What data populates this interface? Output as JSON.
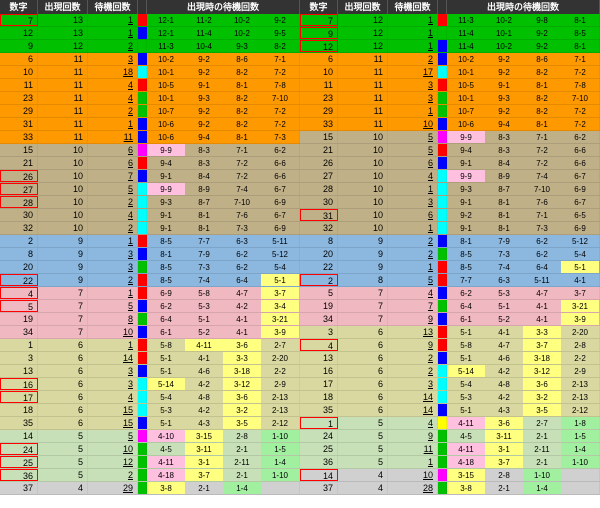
{
  "headers": {
    "num": "数字",
    "appear": "出現回数",
    "wait": "待機回数",
    "waitAtAppear": "出現時の待機回数"
  },
  "colors": {
    "green": "#00c000",
    "orange": "#ff9900",
    "tan": "#c0b088",
    "blue": "#8cb8e0",
    "pink": "#f0b8c0",
    "olive": "#d8d8a0",
    "ltgreen": "#c8e0b8",
    "gray": "#d0d0d0",
    "red": "#ff0000",
    "magenta": "#ff00ff",
    "dkblue": "#0000ff",
    "yellow": "#ffff00",
    "cyan": "#00ffff",
    "hl_yellow": "#ffff80",
    "hl_green": "#a0f0a0",
    "hl_pink": "#ffc0e0",
    "hl_blue": "#c0e0ff"
  },
  "left": [
    {
      "n": 7,
      "a": 13,
      "w": 1,
      "bg": "green",
      "bar": "red",
      "rb": 1,
      "wt": [
        "12-1",
        "11-2",
        "10-2",
        "9-2"
      ],
      "wh": [
        0,
        0,
        0,
        0
      ]
    },
    {
      "n": 12,
      "a": 13,
      "w": 1,
      "bg": "green",
      "bar": "dkblue",
      "wt": [
        "12-1",
        "11-4",
        "10-2",
        "9-5"
      ],
      "wh": [
        0,
        0,
        0,
        0
      ]
    },
    {
      "n": 9,
      "a": 12,
      "w": 2,
      "bg": "green",
      "bar": "green",
      "wt": [
        "11-3",
        "10-4",
        "9-3",
        "8-2"
      ],
      "wh": [
        1,
        0,
        0,
        0
      ]
    },
    {
      "n": 6,
      "a": 11,
      "w": 3,
      "bg": "orange",
      "bar": "dkblue",
      "wt": [
        "10-2",
        "9-2",
        "8-6",
        "7-1"
      ],
      "wh": [
        0,
        0,
        0,
        0
      ]
    },
    {
      "n": 10,
      "a": 11,
      "w": 18,
      "bg": "orange",
      "bar": "cyan",
      "wt": [
        "10-1",
        "9-2",
        "8-2",
        "7-2"
      ],
      "wh": [
        0,
        0,
        0,
        0
      ]
    },
    {
      "n": 11,
      "a": 11,
      "w": 4,
      "bg": "orange",
      "bar": "red",
      "wt": [
        "10-5",
        "9-1",
        "8-1",
        "7-8"
      ],
      "wh": [
        0,
        0,
        0,
        0
      ]
    },
    {
      "n": 23,
      "a": 11,
      "w": 4,
      "bg": "orange",
      "bar": "green",
      "wt": [
        "10-1",
        "9-3",
        "8-2",
        "7-10"
      ],
      "wh": [
        0,
        0,
        0,
        0
      ]
    },
    {
      "n": 29,
      "a": 11,
      "w": 2,
      "bg": "orange",
      "bar": "green",
      "wt": [
        "10-7",
        "9-2",
        "8-2",
        "7-2"
      ],
      "wh": [
        0,
        0,
        0,
        0
      ]
    },
    {
      "n": 31,
      "a": 11,
      "w": 1,
      "bg": "orange",
      "bar": "dkblue",
      "wt": [
        "10-6",
        "9-2",
        "8-2",
        "7-2"
      ],
      "wh": [
        0,
        0,
        0,
        0
      ]
    },
    {
      "n": 33,
      "a": 11,
      "w": 11,
      "bg": "orange",
      "bar": "dkblue",
      "wt": [
        "10-6",
        "9-4",
        "8-1",
        "7-3"
      ],
      "wh": [
        0,
        0,
        0,
        0,
        "hl_blue"
      ]
    },
    {
      "n": 15,
      "a": 10,
      "w": 6,
      "bg": "tan",
      "bar": "magenta",
      "wt": [
        "9-9",
        "8-3",
        "7-1",
        "6-2"
      ],
      "wh": [
        "hl_pink",
        0,
        0,
        0
      ]
    },
    {
      "n": 21,
      "a": 10,
      "w": 6,
      "bg": "tan",
      "bar": "red",
      "wt": [
        "9-4",
        "8-3",
        "7-2",
        "6-6"
      ],
      "wh": [
        0,
        0,
        0,
        0
      ]
    },
    {
      "n": 26,
      "a": 10,
      "w": 7,
      "bg": "tan",
      "bar": "dkblue",
      "rb": 1,
      "wt": [
        "9-1",
        "8-4",
        "7-2",
        "6-6"
      ],
      "wh": [
        0,
        0,
        0,
        0
      ]
    },
    {
      "n": 27,
      "a": 10,
      "w": 5,
      "bg": "tan",
      "bar": "cyan",
      "rb": 1,
      "wt": [
        "9-9",
        "8-9",
        "7-4",
        "6-7"
      ],
      "wh": [
        "hl_pink",
        0,
        0,
        0
      ]
    },
    {
      "n": 28,
      "a": 10,
      "w": 2,
      "bg": "tan",
      "bar": "cyan",
      "rb": 1,
      "wt": [
        "9-3",
        "8-7",
        "7-10",
        "6-9"
      ],
      "wh": [
        0,
        0,
        0,
        0
      ]
    },
    {
      "n": 30,
      "a": 10,
      "w": 4,
      "bg": "tan",
      "bar": "cyan",
      "wt": [
        "9-1",
        "8-1",
        "7-6",
        "6-7"
      ],
      "wh": [
        0,
        0,
        0,
        0
      ]
    },
    {
      "n": 32,
      "a": 10,
      "w": 2,
      "bg": "tan",
      "bar": "cyan",
      "wt": [
        "9-1",
        "8-1",
        "7-3",
        "6-9"
      ],
      "wh": [
        0,
        0,
        0,
        0
      ]
    },
    {
      "n": 2,
      "a": 9,
      "w": 1,
      "bg": "blue",
      "bar": "red",
      "wt": [
        "8-5",
        "7-7",
        "6-3",
        "5-11"
      ],
      "wh": [
        0,
        0,
        0,
        0
      ]
    },
    {
      "n": 8,
      "a": 9,
      "w": 3,
      "bg": "blue",
      "bar": "dkblue",
      "wt": [
        "8-1",
        "7-9",
        "6-2",
        "5-12"
      ],
      "wh": [
        0,
        0,
        0,
        0
      ]
    },
    {
      "n": 20,
      "a": 9,
      "w": 3,
      "bg": "blue",
      "bar": "green",
      "wt": [
        "8-5",
        "7-3",
        "6-2",
        "5-4"
      ],
      "wh": [
        0,
        0,
        0,
        0
      ]
    },
    {
      "n": 22,
      "a": 9,
      "w": 2,
      "bg": "blue",
      "bar": "red",
      "rb": 1,
      "wt": [
        "8-5",
        "7-4",
        "6-4",
        "5-1"
      ],
      "wh": [
        0,
        0,
        0,
        "hl_yellow"
      ]
    },
    {
      "n": 4,
      "a": 7,
      "w": 1,
      "bg": "pink",
      "bar": "red",
      "rb": 1,
      "wt": [
        "6-9",
        "5-8",
        "4-7",
        "3-7"
      ],
      "wh": [
        0,
        0,
        0,
        "hl_yellow"
      ]
    },
    {
      "n": 5,
      "a": 7,
      "w": 5,
      "bg": "pink",
      "bar": "dkblue",
      "rb": 1,
      "wt": [
        "6-2",
        "5-3",
        "4-2",
        "3-4"
      ],
      "wh": [
        0,
        0,
        0,
        "hl_yellow"
      ]
    },
    {
      "n": 19,
      "a": 7,
      "w": 8,
      "bg": "pink",
      "bar": "green",
      "wt": [
        "6-4",
        "5-1",
        "4-1",
        "3-21"
      ],
      "wh": [
        0,
        0,
        0,
        "hl_yellow"
      ]
    },
    {
      "n": 34,
      "a": 7,
      "w": 10,
      "bg": "pink",
      "bar": "dkblue",
      "wt": [
        "6-1",
        "5-2",
        "4-1",
        "3-9"
      ],
      "wh": [
        0,
        0,
        0,
        "hl_yellow"
      ]
    },
    {
      "n": 1,
      "a": 6,
      "w": 1,
      "bg": "olive",
      "bar": "red",
      "wt": [
        "5-8",
        "4-11",
        "3-6",
        "2-7"
      ],
      "wh": [
        0,
        "hl_yellow",
        "hl_yellow",
        0
      ]
    },
    {
      "n": 3,
      "a": 6,
      "w": 14,
      "bg": "olive",
      "bar": "red",
      "wt": [
        "5-1",
        "4-1",
        "3-3",
        "2-20"
      ],
      "wh": [
        0,
        0,
        "hl_yellow",
        0
      ]
    },
    {
      "n": 13,
      "a": 6,
      "w": 3,
      "bg": "olive",
      "bar": "dkblue",
      "wt": [
        "5-1",
        "4-6",
        "3-18",
        "2-2"
      ],
      "wh": [
        0,
        0,
        "hl_yellow",
        0
      ]
    },
    {
      "n": 16,
      "a": 6,
      "w": 3,
      "bg": "olive",
      "bar": "cyan",
      "rb": 1,
      "wt": [
        "5-14",
        "4-2",
        "3-12",
        "2-9"
      ],
      "wh": [
        "hl_yellow",
        0,
        "hl_yellow",
        0
      ]
    },
    {
      "n": 17,
      "a": 6,
      "w": 4,
      "bg": "olive",
      "bar": "cyan",
      "rb": 1,
      "wt": [
        "5-4",
        "4-8",
        "3-6",
        "2-13"
      ],
      "wh": [
        0,
        0,
        "hl_yellow",
        0
      ]
    },
    {
      "n": 18,
      "a": 6,
      "w": 15,
      "bg": "olive",
      "bar": "cyan",
      "wt": [
        "5-3",
        "4-2",
        "3-2",
        "2-13"
      ],
      "wh": [
        0,
        0,
        "hl_yellow",
        0
      ]
    },
    {
      "n": 35,
      "a": 6,
      "w": 15,
      "bg": "olive",
      "bar": "dkblue",
      "wt": [
        "5-1",
        "4-3",
        "3-5",
        "2-12"
      ],
      "wh": [
        0,
        0,
        "hl_yellow",
        0
      ]
    },
    {
      "n": 14,
      "a": 5,
      "w": 5,
      "bg": "ltgreen",
      "bar": "magenta",
      "wt": [
        "4-10",
        "3-15",
        "2-8",
        "1-10"
      ],
      "wh": [
        "hl_pink",
        "hl_yellow",
        0,
        "hl_green"
      ]
    },
    {
      "n": 24,
      "a": 5,
      "w": 10,
      "bg": "ltgreen",
      "bar": "green",
      "rb": 1,
      "wt": [
        "4-5",
        "3-11",
        "2-1",
        "1-5"
      ],
      "wh": [
        0,
        "hl_yellow",
        0,
        "hl_green"
      ]
    },
    {
      "n": 25,
      "a": 5,
      "w": 12,
      "bg": "ltgreen",
      "bar": "green",
      "rb": 1,
      "wt": [
        "4-11",
        "3-1",
        "2-11",
        "1-4"
      ],
      "wh": [
        "hl_pink",
        "hl_yellow",
        0,
        "hl_green"
      ]
    },
    {
      "n": 36,
      "a": 5,
      "w": 2,
      "bg": "ltgreen",
      "bar": "green",
      "rb": 1,
      "wt": [
        "4-18",
        "3-7",
        "2-1",
        "1-10"
      ],
      "wh": [
        "hl_pink",
        "hl_yellow",
        0,
        "hl_green"
      ]
    },
    {
      "n": 37,
      "a": 4,
      "w": 29,
      "bg": "gray",
      "bar": "green",
      "wt": [
        "3-8",
        "2-1",
        "1-4",
        ""
      ],
      "wh": [
        "hl_yellow",
        0,
        "hl_green",
        0
      ]
    }
  ],
  "right": [
    {
      "n": 7,
      "a": 12,
      "w": 1,
      "bg": "green",
      "bar": "red",
      "rb": 1,
      "wt": [
        "11-3",
        "10-2",
        "9-8",
        "8-1"
      ],
      "wh": [
        0,
        0,
        0,
        0
      ]
    },
    {
      "n": 9,
      "a": 12,
      "w": 1,
      "bg": "green",
      "bar": "green",
      "rb": 1,
      "wt": [
        "11-4",
        "10-1",
        "9-2",
        "8-5"
      ],
      "wh": [
        0,
        0,
        0,
        0
      ]
    },
    {
      "n": 12,
      "a": 12,
      "w": 1,
      "bg": "green",
      "bar": "dkblue",
      "rb": 1,
      "wt": [
        "11-4",
        "10-2",
        "9-2",
        "8-1"
      ],
      "wh": [
        0,
        0,
        0,
        0
      ]
    },
    {
      "n": 6,
      "a": 11,
      "w": 2,
      "bg": "orange",
      "bar": "dkblue",
      "wt": [
        "10-2",
        "9-2",
        "8-6",
        "7-1"
      ],
      "wh": [
        0,
        0,
        0,
        0
      ]
    },
    {
      "n": 10,
      "a": 11,
      "w": 17,
      "bg": "orange",
      "bar": "cyan",
      "wt": [
        "10-1",
        "9-2",
        "8-2",
        "7-2"
      ],
      "wh": [
        0,
        0,
        0,
        0
      ]
    },
    {
      "n": 11,
      "a": 11,
      "w": 3,
      "bg": "orange",
      "bar": "red",
      "wt": [
        "10-5",
        "9-1",
        "8-1",
        "7-8"
      ],
      "wh": [
        0,
        0,
        0,
        0
      ]
    },
    {
      "n": 23,
      "a": 11,
      "w": 3,
      "bg": "orange",
      "bar": "green",
      "wt": [
        "10-1",
        "9-3",
        "8-2",
        "7-10"
      ],
      "wh": [
        0,
        0,
        0,
        0
      ]
    },
    {
      "n": 29,
      "a": 11,
      "w": 1,
      "bg": "orange",
      "bar": "green",
      "wt": [
        "10-7",
        "9-2",
        "8-2",
        "7-2"
      ],
      "wh": [
        0,
        0,
        0,
        0
      ]
    },
    {
      "n": 33,
      "a": 11,
      "w": 10,
      "bg": "orange",
      "bar": "dkblue",
      "wt": [
        "10-6",
        "9-4",
        "8-1",
        "7-2"
      ],
      "wh": [
        0,
        0,
        0,
        0
      ]
    },
    {
      "n": 15,
      "a": 10,
      "w": 5,
      "bg": "tan",
      "bar": "magenta",
      "wt": [
        "9-9",
        "8-3",
        "7-1",
        "6-2"
      ],
      "wh": [
        "hl_pink",
        0,
        0,
        0
      ]
    },
    {
      "n": 21,
      "a": 10,
      "w": 5,
      "bg": "tan",
      "bar": "red",
      "wt": [
        "9-4",
        "8-3",
        "7-2",
        "6-6"
      ],
      "wh": [
        0,
        0,
        0,
        0
      ]
    },
    {
      "n": 26,
      "a": 10,
      "w": 6,
      "bg": "tan",
      "bar": "dkblue",
      "wt": [
        "9-1",
        "8-4",
        "7-2",
        "6-6"
      ],
      "wh": [
        0,
        0,
        0,
        0
      ]
    },
    {
      "n": 27,
      "a": 10,
      "w": 4,
      "bg": "tan",
      "bar": "cyan",
      "wt": [
        "9-9",
        "8-9",
        "7-4",
        "6-7"
      ],
      "wh": [
        "hl_pink",
        0,
        0,
        0
      ]
    },
    {
      "n": 28,
      "a": 10,
      "w": 1,
      "bg": "tan",
      "bar": "cyan",
      "wt": [
        "9-3",
        "8-7",
        "7-10",
        "6-9"
      ],
      "wh": [
        0,
        0,
        0,
        0
      ]
    },
    {
      "n": 30,
      "a": 10,
      "w": 3,
      "bg": "tan",
      "bar": "cyan",
      "wt": [
        "9-1",
        "8-1",
        "7-6",
        "6-7"
      ],
      "wh": [
        0,
        0,
        0,
        0
      ]
    },
    {
      "n": 31,
      "a": 10,
      "w": 6,
      "bg": "tan",
      "bar": "cyan",
      "rb": 1,
      "wt": [
        "9-2",
        "8-1",
        "7-1",
        "6-5"
      ],
      "wh": [
        0,
        0,
        0,
        0
      ]
    },
    {
      "n": 32,
      "a": 10,
      "w": 1,
      "bg": "tan",
      "bar": "cyan",
      "wt": [
        "9-1",
        "8-1",
        "7-3",
        "6-9"
      ],
      "wh": [
        0,
        0,
        0,
        0
      ]
    },
    {
      "n": 8,
      "a": 9,
      "w": 2,
      "bg": "blue",
      "bar": "dkblue",
      "wt": [
        "8-1",
        "7-9",
        "6-2",
        "5-12"
      ],
      "wh": [
        0,
        0,
        0,
        0
      ]
    },
    {
      "n": 20,
      "a": 9,
      "w": 2,
      "bg": "blue",
      "bar": "green",
      "wt": [
        "8-5",
        "7-3",
        "6-2",
        "5-4"
      ],
      "wh": [
        0,
        0,
        0,
        0
      ]
    },
    {
      "n": 22,
      "a": 9,
      "w": 1,
      "bg": "blue",
      "bar": "red",
      "wt": [
        "8-5",
        "7-4",
        "6-4",
        "5-1"
      ],
      "wh": [
        0,
        0,
        0,
        "hl_yellow"
      ]
    },
    {
      "n": 2,
      "a": 8,
      "w": 5,
      "bg": "blue",
      "bar": "red",
      "rb": 1,
      "wt": [
        "7-7",
        "6-3",
        "5-11",
        "4-1"
      ],
      "wh": [
        0,
        0,
        0,
        0
      ]
    },
    {
      "n": 5,
      "a": 7,
      "w": 4,
      "bg": "pink",
      "bar": "dkblue",
      "wt": [
        "6-2",
        "5-3",
        "4-7",
        "3-7"
      ],
      "wh": [
        0,
        0,
        0,
        0
      ]
    },
    {
      "n": 19,
      "a": 7,
      "w": 7,
      "bg": "pink",
      "bar": "green",
      "wt": [
        "6-4",
        "5-1",
        "4-1",
        "3-21"
      ],
      "wh": [
        0,
        0,
        0,
        "hl_yellow"
      ]
    },
    {
      "n": 34,
      "a": 7,
      "w": 9,
      "bg": "pink",
      "bar": "dkblue",
      "wt": [
        "6-1",
        "5-2",
        "4-1",
        "3-9"
      ],
      "wh": [
        0,
        0,
        0,
        "hl_yellow"
      ]
    },
    {
      "n": 3,
      "a": 6,
      "w": 13,
      "bg": "olive",
      "bar": "red",
      "wt": [
        "5-1",
        "4-1",
        "3-3",
        "2-20"
      ],
      "wh": [
        0,
        0,
        "hl_yellow",
        0
      ]
    },
    {
      "n": 4,
      "a": 6,
      "w": 9,
      "bg": "olive",
      "bar": "red",
      "rb": 1,
      "wt": [
        "5-8",
        "4-7",
        "3-7",
        "2-8"
      ],
      "wh": [
        0,
        0,
        "hl_yellow",
        0
      ]
    },
    {
      "n": 13,
      "a": 6,
      "w": 2,
      "bg": "olive",
      "bar": "dkblue",
      "wt": [
        "5-1",
        "4-6",
        "3-18",
        "2-2"
      ],
      "wh": [
        0,
        0,
        "hl_yellow",
        0
      ]
    },
    {
      "n": 16,
      "a": 6,
      "w": 2,
      "bg": "olive",
      "bar": "cyan",
      "wt": [
        "5-14",
        "4-2",
        "3-12",
        "2-9"
      ],
      "wh": [
        "hl_yellow",
        0,
        "hl_yellow",
        0
      ]
    },
    {
      "n": 17,
      "a": 6,
      "w": 3,
      "bg": "olive",
      "bar": "cyan",
      "wt": [
        "5-4",
        "4-8",
        "3-6",
        "2-13"
      ],
      "wh": [
        0,
        0,
        "hl_yellow",
        0
      ]
    },
    {
      "n": 18,
      "a": 6,
      "w": 14,
      "bg": "olive",
      "bar": "cyan",
      "wt": [
        "5-3",
        "4-2",
        "3-2",
        "2-13"
      ],
      "wh": [
        0,
        0,
        "hl_yellow",
        0
      ]
    },
    {
      "n": 35,
      "a": 6,
      "w": 14,
      "bg": "olive",
      "bar": "dkblue",
      "wt": [
        "5-1",
        "4-3",
        "3-5",
        "2-12"
      ],
      "wh": [
        0,
        0,
        "hl_yellow",
        0
      ]
    },
    {
      "n": 1,
      "a": 5,
      "w": 4,
      "bg": "ltgreen",
      "bar": "yellow",
      "rb": 1,
      "wt": [
        "4-11",
        "3-6",
        "2-7",
        "1-8"
      ],
      "wh": [
        "hl_pink",
        "hl_yellow",
        0,
        "hl_green"
      ]
    },
    {
      "n": 24,
      "a": 5,
      "w": 9,
      "bg": "ltgreen",
      "bar": "green",
      "wt": [
        "4-5",
        "3-11",
        "2-1",
        "1-5"
      ],
      "wh": [
        0,
        "hl_yellow",
        0,
        "hl_green"
      ]
    },
    {
      "n": 25,
      "a": 5,
      "w": 11,
      "bg": "ltgreen",
      "bar": "green",
      "wt": [
        "4-11",
        "3-1",
        "2-11",
        "1-4"
      ],
      "wh": [
        "hl_pink",
        "hl_yellow",
        0,
        "hl_green"
      ]
    },
    {
      "n": 36,
      "a": 5,
      "w": 1,
      "bg": "ltgreen",
      "bar": "green",
      "wt": [
        "4-18",
        "3-7",
        "2-1",
        "1-10"
      ],
      "wh": [
        "hl_pink",
        "hl_yellow",
        0,
        "hl_green"
      ]
    },
    {
      "n": 14,
      "a": 4,
      "w": 10,
      "bg": "gray",
      "bar": "magenta",
      "rb": 1,
      "wt": [
        "3-15",
        "2-8",
        "1-10",
        ""
      ],
      "wh": [
        "hl_yellow",
        0,
        "hl_green",
        0
      ]
    },
    {
      "n": 37,
      "a": 4,
      "w": 28,
      "bg": "gray",
      "bar": "green",
      "wt": [
        "3-8",
        "2-1",
        "1-4",
        ""
      ],
      "wh": [
        "hl_yellow",
        0,
        "hl_green",
        0
      ]
    }
  ]
}
